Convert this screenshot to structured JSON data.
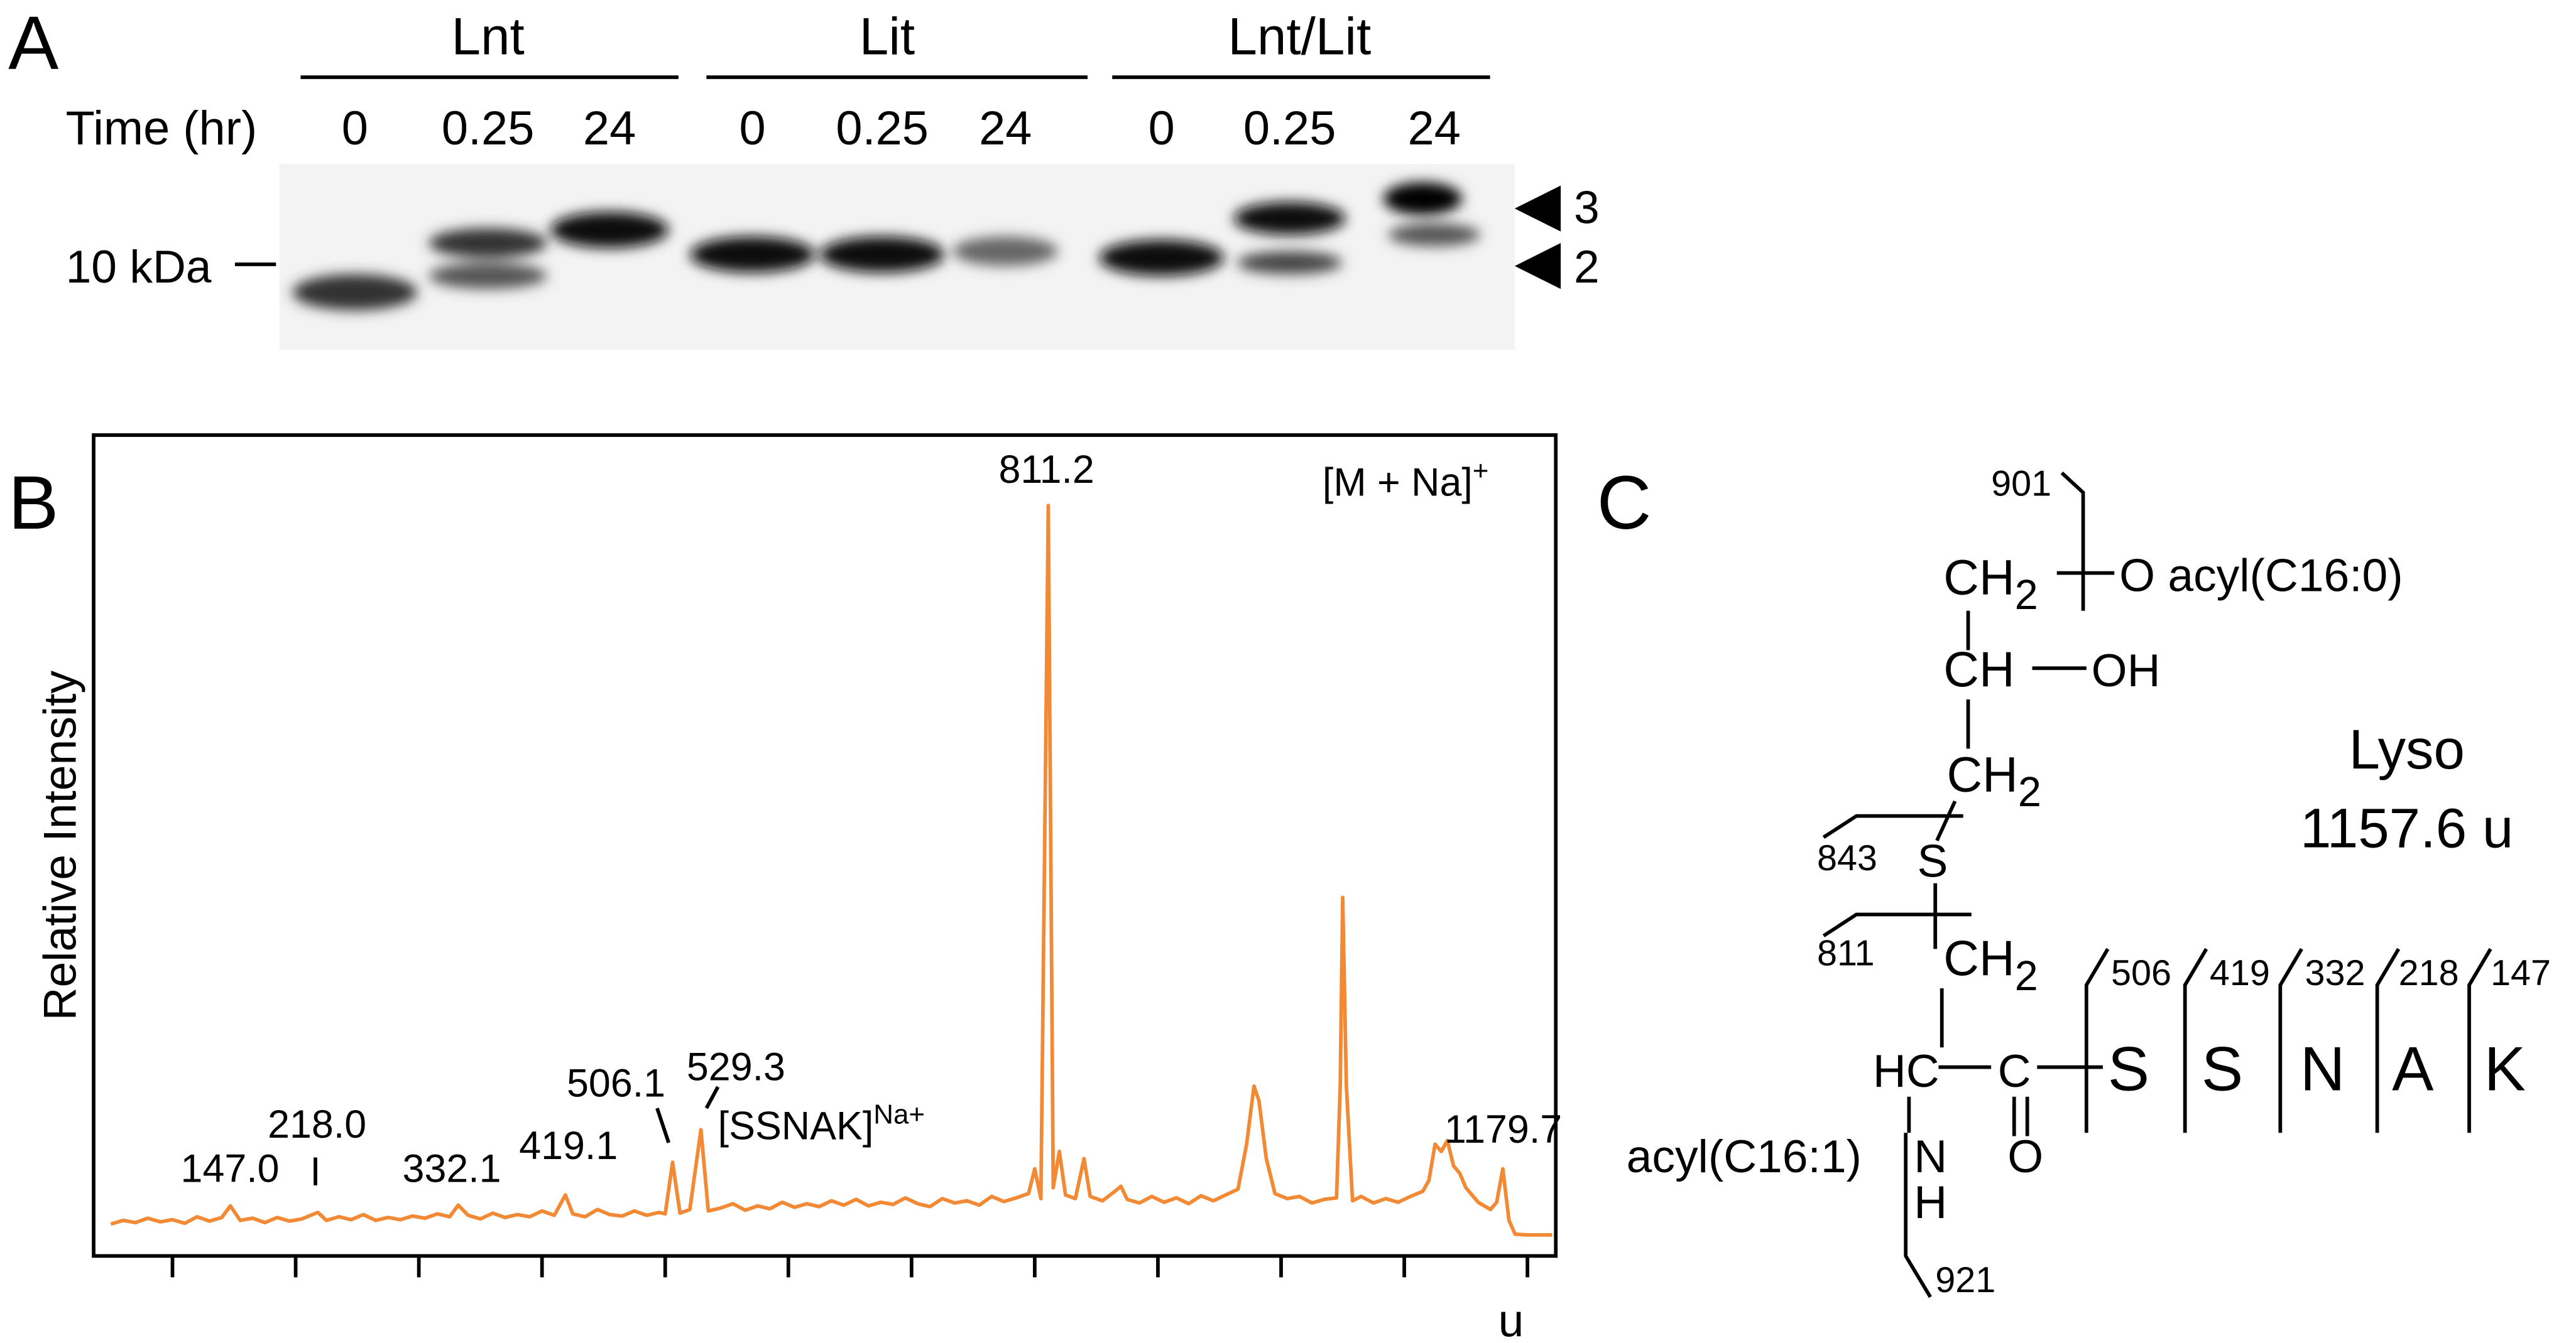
{
  "panel_a": {
    "panel_label": "A",
    "groups": [
      "Lnt",
      "Lit",
      "Lnt/Lit"
    ],
    "time_label": "Time (hr)",
    "times": [
      "0",
      "0.25",
      "24",
      "0",
      "0.25",
      "24",
      "0",
      "0.25",
      "24"
    ],
    "marker": "10 kDa",
    "bands": [
      "3",
      "2"
    ]
  },
  "chart_data": {
    "type": "line",
    "panel_label": "B",
    "y_label": "Relative Intensity",
    "color": "#f28a35",
    "xlim": [
      36,
      1223
    ],
    "ylim": [
      -3.4,
      109.7
    ],
    "xticks": [
      200,
      400,
      600,
      800,
      1000,
      {
        "value": 1200,
        "label": "u"
      }
    ],
    "xminor": [
      100,
      300,
      500,
      700,
      900,
      1100
    ],
    "x": [
      50,
      60,
      70,
      80,
      90,
      100,
      110,
      120,
      130,
      140,
      147,
      155,
      165,
      175,
      185,
      195,
      205,
      218,
      225,
      235,
      245,
      255,
      265,
      275,
      285,
      295,
      305,
      315,
      325,
      332,
      340,
      350,
      360,
      370,
      380,
      390,
      400,
      410,
      419,
      425,
      435,
      445,
      455,
      465,
      475,
      485,
      495,
      500,
      506,
      512,
      520,
      529,
      535,
      545,
      555,
      565,
      575,
      585,
      595,
      605,
      615,
      625,
      635,
      645,
      655,
      665,
      675,
      685,
      695,
      705,
      715,
      725,
      735,
      745,
      755,
      765,
      775,
      785,
      795,
      800,
      805,
      811,
      815,
      820,
      825,
      833,
      840,
      845,
      855,
      865,
      870,
      875,
      885,
      895,
      905,
      915,
      925,
      935,
      945,
      955,
      965,
      972,
      978,
      982,
      988,
      995,
      1005,
      1015,
      1025,
      1035,
      1045,
      1048,
      1050,
      1053,
      1058,
      1065,
      1075,
      1085,
      1095,
      1105,
      1115,
      1120,
      1125,
      1130,
      1135,
      1140,
      1145,
      1150,
      1155,
      1160,
      1165,
      1170,
      1175,
      1180,
      1185,
      1190,
      1200,
      1210,
      1220
    ],
    "values": [
      1.0,
      1.5,
      1.2,
      1.8,
      1.3,
      1.6,
      1.1,
      2.0,
      1.4,
      1.9,
      3.5,
      1.5,
      1.8,
      1.2,
      1.9,
      1.4,
      1.7,
      2.6,
      1.5,
      2.0,
      1.6,
      2.3,
      1.5,
      1.9,
      1.6,
      2.1,
      1.8,
      2.4,
      2.0,
      3.6,
      2.2,
      1.7,
      2.5,
      1.9,
      2.3,
      2.0,
      2.8,
      2.2,
      5.0,
      2.4,
      2.0,
      3.0,
      2.3,
      2.1,
      2.8,
      2.2,
      2.6,
      2.4,
      9.5,
      2.5,
      3.0,
      14.0,
      2.8,
      3.2,
      3.8,
      2.9,
      3.5,
      3.1,
      4.0,
      3.3,
      3.8,
      3.4,
      4.2,
      3.6,
      4.4,
      3.5,
      4.0,
      3.7,
      4.6,
      3.8,
      3.4,
      4.5,
      3.9,
      4.2,
      3.6,
      4.8,
      4.1,
      4.6,
      5.2,
      8.6,
      4.5,
      100,
      6.0,
      11.0,
      5.0,
      4.5,
      10.0,
      4.8,
      4.2,
      5.5,
      6.2,
      4.4,
      3.9,
      4.8,
      4.0,
      4.6,
      3.8,
      4.9,
      4.2,
      5.0,
      5.8,
      12.0,
      20.0,
      18.0,
      10.0,
      5.2,
      4.5,
      4.8,
      3.9,
      4.4,
      4.6,
      20.0,
      46.0,
      20.0,
      4.2,
      4.8,
      3.9,
      4.5,
      4.0,
      4.8,
      5.5,
      7.0,
      12.0,
      11.0,
      12.5,
      9.0,
      8.0,
      6.0,
      5.0,
      4.0,
      3.5,
      3.0,
      4.0,
      8.6,
      1.5,
      -0.4,
      -0.5,
      -0.5,
      -0.5
    ],
    "annotations": [
      "147.0",
      "218.0",
      "332.1",
      "419.1",
      "506.1",
      "529.3",
      {
        "text": "[SSNAK]",
        "sup": "Na+"
      },
      "811.2",
      "1179.7",
      {
        "text": "[M + Na]",
        "sup": "+"
      }
    ]
  },
  "panel_c": {
    "panel_label": "C",
    "title": "Lyso",
    "mass": "1157.6 u",
    "labels": [
      "901",
      {
        "text": "CH",
        "sub": "2"
      },
      "O acyl(C16:0)",
      "CH",
      "OH",
      {
        "text": "CH",
        "sub": "2"
      },
      "843",
      "S",
      "811",
      {
        "text": "CH",
        "sub": "2"
      },
      "506",
      "419",
      "332",
      "218",
      "147",
      "HC",
      "C",
      "S",
      "S",
      "N",
      "A",
      "K",
      "O",
      "acyl(C16:1)",
      "N",
      "H",
      "921"
    ]
  }
}
